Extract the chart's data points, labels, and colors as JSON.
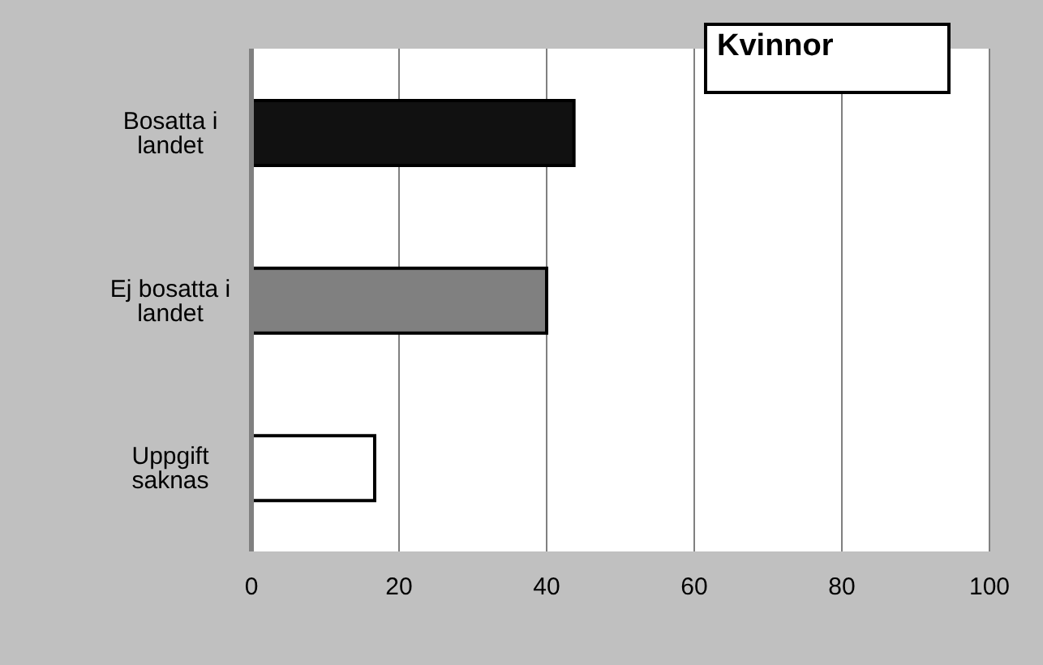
{
  "chart_data": {
    "type": "bar",
    "orientation": "horizontal",
    "title": "Kvinnor",
    "categories": [
      "Bosatta i landet",
      "Ej bosatta i landet",
      "Uppgift saknas"
    ],
    "values": [
      43.7,
      40,
      16.7
    ],
    "colors": [
      "#111111",
      "#808080",
      "#ffffff"
    ],
    "xlim": [
      0,
      100
    ],
    "xticks": [
      0,
      20,
      40,
      60,
      80,
      100
    ],
    "grid": "x"
  }
}
